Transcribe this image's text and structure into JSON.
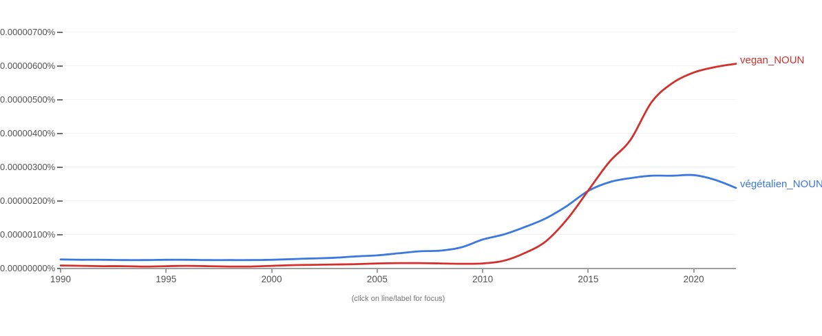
{
  "chart_data": {
    "type": "line",
    "title": "",
    "xlabel": "",
    "ylabel": "",
    "x_unit": "year",
    "value_unit": "percent * 1e-8 (word frequency)",
    "xlim": [
      1990,
      2022
    ],
    "ylim": [
      0,
      750
    ],
    "grid": true,
    "legend_position": "right-end-of-line",
    "x": [
      1990,
      1991,
      1992,
      1993,
      1994,
      1995,
      1996,
      1997,
      1998,
      1999,
      2000,
      2001,
      2002,
      2003,
      2004,
      2005,
      2006,
      2007,
      2008,
      2009,
      2010,
      2011,
      2012,
      2013,
      2014,
      2015,
      2016,
      2017,
      2018,
      2019,
      2020,
      2021,
      2022
    ],
    "x_tick_labels": [
      "1990",
      "1995",
      "2000",
      "2005",
      "2010",
      "2015",
      "2020"
    ],
    "x_tick_years": [
      1990,
      1995,
      2000,
      2005,
      2010,
      2015,
      2020
    ],
    "y_tick_labels": [
      "0.00000000%",
      "0.00000100%",
      "0.00000200%",
      "0.00000300%",
      "0.00000400%",
      "0.00000500%",
      "0.00000600%",
      "0.00000700%"
    ],
    "y_tick_values": [
      0,
      100,
      200,
      300,
      400,
      500,
      600,
      700
    ],
    "series": [
      {
        "name": "végétalien_NOUN",
        "color": "#3b78e0",
        "values": [
          26,
          25,
          25,
          24,
          24,
          25,
          25,
          24,
          24,
          24,
          25,
          27,
          29,
          31,
          35,
          38,
          44,
          50,
          52,
          62,
          85,
          100,
          122,
          148,
          185,
          229,
          255,
          267,
          274,
          274,
          276,
          262,
          238
        ]
      },
      {
        "name": "vegan_NOUN",
        "color": "#d3302b",
        "values": [
          8,
          7,
          6,
          6,
          5,
          6,
          7,
          6,
          5,
          5,
          7,
          9,
          10,
          11,
          12,
          14,
          15,
          15,
          14,
          13,
          14,
          22,
          45,
          80,
          145,
          230,
          315,
          380,
          492,
          549,
          580,
          596,
          606
        ]
      }
    ],
    "footnote": "(click on line/label for focus)"
  }
}
